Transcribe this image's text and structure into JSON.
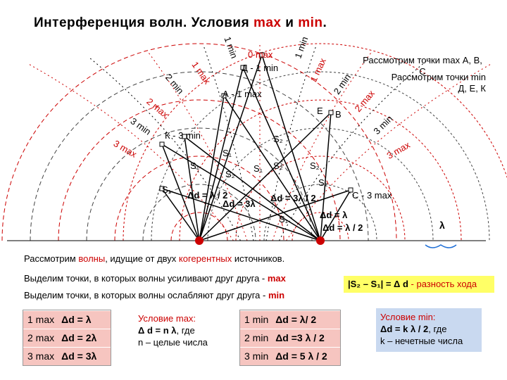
{
  "title": {
    "part1": "Интерференция волн. Условия ",
    "max": "max",
    "and": " и ",
    "min": "min",
    "dot": "."
  },
  "diagram_labels": {
    "d_label": "Д - 1 min",
    "zero_max": "0 max",
    "a_label": "А - 1 max",
    "e_label": "E",
    "b_label": "B",
    "k_label": "К - 3 min",
    "c_label": "C - 3 max",
    "s1": "S₁",
    "s2": "S₂",
    "delta_half": "Δd = λ / 2",
    "delta_lambda": "Δd = λ",
    "delta_three_half": "Δd = 3λ / 2",
    "delta_three": "Δd = 3λ",
    "delta_two_half": "Δd = λ / 2",
    "lambda": "λ"
  },
  "arc_labels_left": [
    "1 min",
    "1 max",
    "2 min",
    "2 max",
    "3 min",
    "3 max"
  ],
  "arc_labels_right": [
    "1 min",
    "1 max",
    "2 min",
    "2 max",
    "3 min",
    "3 max"
  ],
  "consider_max": "Рассмотрим точки max А, В, С",
  "consider_min": "Рассмотрим точки min Д, Е, К",
  "consider_waves": {
    "pre": "Рассмотрим ",
    "waves": "волны",
    "mid": ", идущие от двух ",
    "coh": "когерентных",
    "post": " источников."
  },
  "highlight_max": {
    "text": "Выделим точки, в которых волны усиливают друг друга - ",
    "kw": "max"
  },
  "highlight_min": {
    "text": "Выделим точки, в которых волны ослабляют друг друга - ",
    "kw": "min"
  },
  "path_diff": {
    "formula": "|S₂ – S₁| = Δ d",
    "desc": " - разность хода"
  },
  "max_table": [
    {
      "name": "1 max",
      "value": "Δd = λ"
    },
    {
      "name": "2 max",
      "value": "Δd = 2λ"
    },
    {
      "name": "3 max",
      "value": "Δd = 3λ"
    }
  ],
  "cond_max": {
    "title": "Условие max:",
    "formula": "Δ d = n λ",
    "rest": ", где",
    "note": "n – целые числа"
  },
  "min_table": [
    {
      "name": "1 min",
      "value": "Δd = λ/ 2"
    },
    {
      "name": "2 min",
      "value": "Δd =3 λ / 2"
    },
    {
      "name": "3 min",
      "value": "Δd = 5 λ / 2"
    }
  ],
  "cond_min": {
    "title": "Условие min:",
    "formula": "Δd = k λ / 2",
    "rest": ", где",
    "note": "k – нечетные числа"
  },
  "colors": {
    "accent_red": "#cc0000",
    "pink": "#f6c5c0",
    "blue_box": "#c9d9f0",
    "yellow_box": "#ffff66",
    "path_diff_text": "#1f3a93"
  }
}
